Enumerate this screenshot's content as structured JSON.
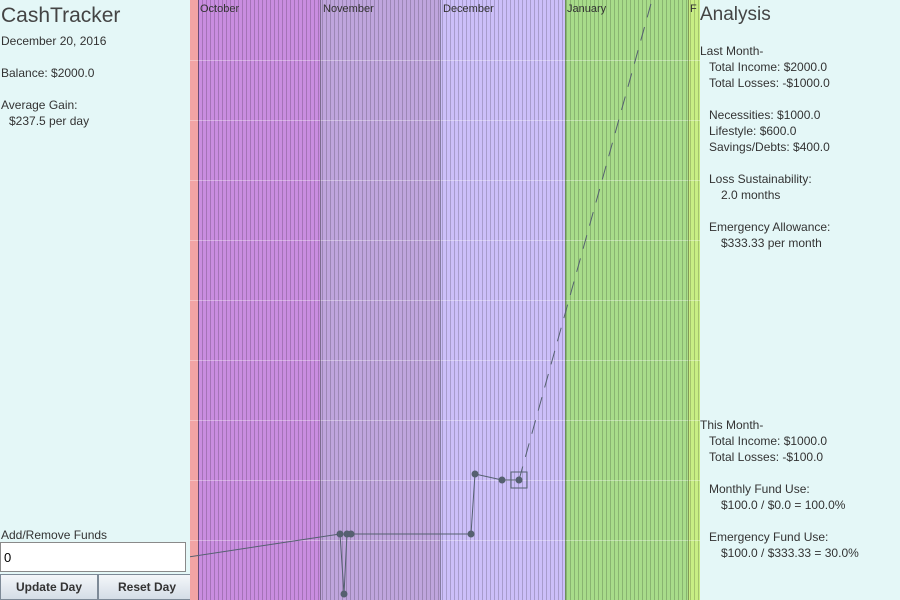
{
  "app": {
    "title": "CashTracker",
    "date": "December 20, 2016",
    "balance": "Balance: $2000.0",
    "avg_gain_label": "Average Gain:",
    "avg_gain_value": "$237.5 per day"
  },
  "controls": {
    "funds_label": "Add/Remove Funds",
    "funds_value": "0",
    "update_label": "Update Day",
    "reset_label": "Reset Day"
  },
  "analysis": {
    "title": "Analysis",
    "last_month": {
      "heading": "Last Month-",
      "income": "Total Income:  $2000.0",
      "losses": "Total Losses: -$1000.0",
      "necessities": "Necessities: $1000.0",
      "lifestyle": "Lifestyle: $600.0",
      "savings": "Savings/Debts: $400.0",
      "sustain_label": "Loss Sustainability:",
      "sustain_value": "2.0 months",
      "emergency_label": "Emergency Allowance:",
      "emergency_value": "$333.33 per month"
    },
    "this_month": {
      "heading": "This Month-",
      "income": "Total Income:  $1000.0",
      "losses": "Total Losses: -$100.0",
      "fund_use_label": "Monthly Fund Use:",
      "fund_use_value": "$100.0 / $0.0 = 100.0%",
      "emergency_use_label": "Emergency Fund Use:",
      "emergency_use_value": "$100.0 / $333.33 = 30.0%"
    }
  },
  "colors": {
    "background": "#e4f7f7",
    "october": "#c98de0",
    "november": "#bfa5dd",
    "december": "#ccbff9",
    "january": "#a8dc8a",
    "february": "#c8ee84",
    "september": "#f2a4a4",
    "line": "#556070"
  },
  "chart_data": {
    "type": "line",
    "months": [
      {
        "name": "",
        "color": "#f2a4a4"
      },
      {
        "name": "October",
        "color": "#c98de0"
      },
      {
        "name": "November",
        "color": "#bfa5dd"
      },
      {
        "name": "December",
        "color": "#ccbff9"
      },
      {
        "name": "January",
        "color": "#a8dc8a"
      },
      {
        "name": "F",
        "color": "#c8ee84"
      }
    ]
  }
}
